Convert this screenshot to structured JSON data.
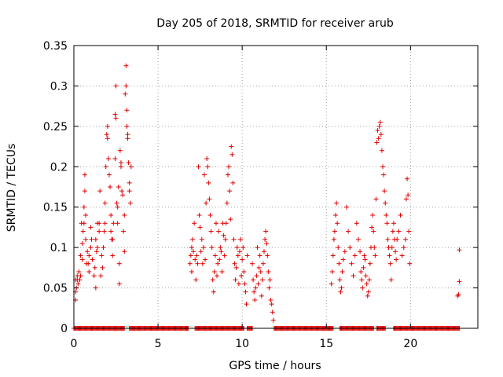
{
  "chart_data": {
    "type": "scatter",
    "title": "Day 205 of 2018, SRMTID for receiver arub",
    "xlabel": "GPS time / hours",
    "ylabel": "SRMTID / TECUs",
    "xlim": [
      0,
      24
    ],
    "ylim": [
      0,
      0.35
    ],
    "x_ticks": [
      0,
      5,
      10,
      15,
      20
    ],
    "x_tick_labels": [
      "0",
      "5",
      "10",
      "15",
      "20"
    ],
    "y_ticks": [
      0,
      0.05,
      0.1,
      0.15,
      0.2,
      0.25,
      0.3,
      0.35
    ],
    "y_tick_labels": [
      "0",
      "0.05",
      "0.1",
      "0.15",
      "0.2",
      "0.25",
      "0.3",
      "0.35"
    ],
    "grid": true,
    "marker": "+",
    "color": "#e00000",
    "series": [
      {
        "name": "SRMTID",
        "points": [
          [
            0.1,
            0.045
          ],
          [
            0.1,
            0.035
          ],
          [
            0.1,
            0.06
          ],
          [
            0.15,
            0.05
          ],
          [
            0.2,
            0.065
          ],
          [
            0.2,
            0.06
          ],
          [
            0.25,
            0.055
          ],
          [
            0.3,
            0.07
          ],
          [
            0.35,
            0.06
          ],
          [
            0.4,
            0.065
          ],
          [
            0.4,
            0.09
          ],
          [
            0.45,
            0.13
          ],
          [
            0.5,
            0.105
          ],
          [
            0.5,
            0.085
          ],
          [
            0.55,
            0.12
          ],
          [
            0.6,
            0.13
          ],
          [
            0.6,
            0.15
          ],
          [
            0.65,
            0.19
          ],
          [
            0.65,
            0.17
          ],
          [
            0.7,
            0.11
          ],
          [
            0.7,
            0.14
          ],
          [
            0.75,
            0.08
          ],
          [
            0.8,
            0.095
          ],
          [
            0.85,
            0.08
          ],
          [
            0.9,
            0.09
          ],
          [
            0.9,
            0.07
          ],
          [
            1.0,
            0.1
          ],
          [
            1.0,
            0.125
          ],
          [
            1.05,
            0.11
          ],
          [
            1.1,
            0.085
          ],
          [
            1.2,
            0.065
          ],
          [
            1.25,
            0.075
          ],
          [
            1.3,
            0.05
          ],
          [
            1.3,
            0.11
          ],
          [
            1.35,
            0.095
          ],
          [
            1.4,
            0.1
          ],
          [
            1.4,
            0.13
          ],
          [
            1.5,
            0.13
          ],
          [
            1.5,
            0.12
          ],
          [
            1.55,
            0.17
          ],
          [
            1.6,
            0.065
          ],
          [
            1.65,
            0.09
          ],
          [
            1.7,
            0.075
          ],
          [
            1.75,
            0.1
          ],
          [
            1.8,
            0.12
          ],
          [
            1.85,
            0.13
          ],
          [
            1.85,
            0.155
          ],
          [
            1.9,
            0.2
          ],
          [
            1.95,
            0.24
          ],
          [
            2.0,
            0.25
          ],
          [
            2.0,
            0.235
          ],
          [
            2.05,
            0.21
          ],
          [
            2.1,
            0.19
          ],
          [
            2.15,
            0.175
          ],
          [
            2.2,
            0.14
          ],
          [
            2.2,
            0.12
          ],
          [
            2.25,
            0.11
          ],
          [
            2.3,
            0.11
          ],
          [
            2.3,
            0.09
          ],
          [
            2.35,
            0.13
          ],
          [
            2.45,
            0.21
          ],
          [
            2.45,
            0.265
          ],
          [
            2.5,
            0.3
          ],
          [
            2.5,
            0.26
          ],
          [
            2.55,
            0.155
          ],
          [
            2.6,
            0.15
          ],
          [
            2.6,
            0.13
          ],
          [
            2.65,
            0.175
          ],
          [
            2.7,
            0.055
          ],
          [
            2.7,
            0.08
          ],
          [
            2.75,
            0.22
          ],
          [
            2.8,
            0.205
          ],
          [
            2.8,
            0.2
          ],
          [
            2.85,
            0.17
          ],
          [
            2.9,
            0.165
          ],
          [
            2.95,
            0.12
          ],
          [
            3.0,
            0.14
          ],
          [
            3.0,
            0.095
          ],
          [
            3.05,
            0.29
          ],
          [
            3.1,
            0.325
          ],
          [
            3.1,
            0.3
          ],
          [
            3.15,
            0.27
          ],
          [
            3.15,
            0.25
          ],
          [
            3.2,
            0.24
          ],
          [
            3.2,
            0.235
          ],
          [
            3.25,
            0.205
          ],
          [
            3.3,
            0.18
          ],
          [
            3.3,
            0.17
          ],
          [
            3.35,
            0.155
          ],
          [
            3.4,
            0.2
          ],
          [
            6.9,
            0.08
          ],
          [
            6.95,
            0.09
          ],
          [
            7.0,
            0.1
          ],
          [
            7.0,
            0.07
          ],
          [
            7.05,
            0.11
          ],
          [
            7.1,
            0.095
          ],
          [
            7.15,
            0.13
          ],
          [
            7.2,
            0.085
          ],
          [
            7.25,
            0.06
          ],
          [
            7.3,
            0.09
          ],
          [
            7.35,
            0.08
          ],
          [
            7.4,
            0.2
          ],
          [
            7.45,
            0.14
          ],
          [
            7.5,
            0.125
          ],
          [
            7.55,
            0.095
          ],
          [
            7.6,
            0.11
          ],
          [
            7.65,
            0.08
          ],
          [
            7.7,
            0.1
          ],
          [
            7.75,
            0.19
          ],
          [
            7.8,
            0.085
          ],
          [
            7.85,
            0.155
          ],
          [
            7.9,
            0.21
          ],
          [
            7.95,
            0.2
          ],
          [
            8.0,
            0.18
          ],
          [
            8.05,
            0.16
          ],
          [
            8.1,
            0.14
          ],
          [
            8.15,
            0.12
          ],
          [
            8.2,
            0.1
          ],
          [
            8.25,
            0.06
          ],
          [
            8.3,
            0.045
          ],
          [
            8.35,
            0.07
          ],
          [
            8.4,
            0.09
          ],
          [
            8.45,
            0.13
          ],
          [
            8.5,
            0.065
          ],
          [
            8.55,
            0.08
          ],
          [
            8.6,
            0.12
          ],
          [
            8.65,
            0.085
          ],
          [
            8.7,
            0.1
          ],
          [
            8.75,
            0.095
          ],
          [
            8.8,
            0.07
          ],
          [
            8.85,
            0.13
          ],
          [
            8.9,
            0.115
          ],
          [
            8.95,
            0.09
          ],
          [
            9.0,
            0.11
          ],
          [
            9.05,
            0.13
          ],
          [
            9.1,
            0.155
          ],
          [
            9.15,
            0.19
          ],
          [
            9.2,
            0.2
          ],
          [
            9.25,
            0.17
          ],
          [
            9.3,
            0.135
          ],
          [
            9.35,
            0.225
          ],
          [
            9.4,
            0.215
          ],
          [
            9.45,
            0.18
          ],
          [
            9.5,
            0.11
          ],
          [
            9.55,
            0.08
          ],
          [
            9.6,
            0.06
          ],
          [
            9.65,
            0.075
          ],
          [
            9.7,
            0.1
          ],
          [
            9.75,
            0.09
          ],
          [
            9.8,
            0.055
          ],
          [
            9.85,
            0.095
          ],
          [
            9.9,
            0.11
          ],
          [
            9.95,
            0.065
          ],
          [
            10.0,
            0.085
          ],
          [
            10.05,
            0.1
          ],
          [
            10.1,
            0.07
          ],
          [
            10.15,
            0.055
          ],
          [
            10.2,
            0.045
          ],
          [
            10.25,
            0.03
          ],
          [
            10.3,
            0.09
          ],
          [
            10.6,
            0.08
          ],
          [
            10.65,
            0.06
          ],
          [
            10.7,
            0.045
          ],
          [
            10.75,
            0.035
          ],
          [
            10.8,
            0.05
          ],
          [
            10.85,
            0.065
          ],
          [
            10.9,
            0.1
          ],
          [
            10.95,
            0.055
          ],
          [
            11.0,
            0.075
          ],
          [
            11.05,
            0.09
          ],
          [
            11.1,
            0.07
          ],
          [
            11.15,
            0.04
          ],
          [
            11.2,
            0.06
          ],
          [
            11.25,
            0.08
          ],
          [
            11.3,
            0.095
          ],
          [
            11.35,
            0.11
          ],
          [
            11.4,
            0.12
          ],
          [
            11.45,
            0.105
          ],
          [
            11.5,
            0.09
          ],
          [
            11.55,
            0.07
          ],
          [
            11.6,
            0.05
          ],
          [
            11.65,
            0.06
          ],
          [
            11.7,
            0.035
          ],
          [
            11.75,
            0.03
          ],
          [
            11.8,
            0.02
          ],
          [
            11.85,
            0.01
          ],
          [
            15.3,
            0.055
          ],
          [
            15.35,
            0.07
          ],
          [
            15.4,
            0.09
          ],
          [
            15.45,
            0.11
          ],
          [
            15.5,
            0.12
          ],
          [
            15.55,
            0.14
          ],
          [
            15.6,
            0.155
          ],
          [
            15.65,
            0.13
          ],
          [
            15.7,
            0.1
          ],
          [
            15.75,
            0.08
          ],
          [
            15.8,
            0.06
          ],
          [
            15.85,
            0.045
          ],
          [
            15.9,
            0.05
          ],
          [
            15.95,
            0.07
          ],
          [
            16.0,
            0.085
          ],
          [
            16.1,
            0.095
          ],
          [
            16.2,
            0.15
          ],
          [
            16.3,
            0.12
          ],
          [
            16.4,
            0.1
          ],
          [
            16.5,
            0.08
          ],
          [
            16.6,
            0.065
          ],
          [
            16.7,
            0.09
          ],
          [
            16.8,
            0.13
          ],
          [
            16.9,
            0.11
          ],
          [
            17.0,
            0.095
          ],
          [
            17.05,
            0.07
          ],
          [
            17.1,
            0.06
          ],
          [
            17.15,
            0.05
          ],
          [
            17.2,
            0.075
          ],
          [
            17.25,
            0.09
          ],
          [
            17.3,
            0.085
          ],
          [
            17.35,
            0.065
          ],
          [
            17.4,
            0.055
          ],
          [
            17.45,
            0.04
          ],
          [
            17.5,
            0.045
          ],
          [
            17.55,
            0.06
          ],
          [
            17.6,
            0.08
          ],
          [
            17.65,
            0.1
          ],
          [
            17.7,
            0.125
          ],
          [
            17.75,
            0.14
          ],
          [
            17.8,
            0.12
          ],
          [
            17.85,
            0.1
          ],
          [
            17.9,
            0.09
          ],
          [
            17.95,
            0.16
          ],
          [
            18.0,
            0.23
          ],
          [
            18.05,
            0.245
          ],
          [
            18.1,
            0.235
          ],
          [
            18.15,
            0.25
          ],
          [
            18.2,
            0.255
          ],
          [
            18.25,
            0.24
          ],
          [
            18.3,
            0.22
          ],
          [
            18.35,
            0.2
          ],
          [
            18.4,
            0.19
          ],
          [
            18.45,
            0.17
          ],
          [
            18.5,
            0.155
          ],
          [
            18.55,
            0.14
          ],
          [
            18.6,
            0.13
          ],
          [
            18.65,
            0.11
          ],
          [
            18.7,
            0.1
          ],
          [
            18.75,
            0.09
          ],
          [
            18.8,
            0.08
          ],
          [
            18.85,
            0.06
          ],
          [
            18.9,
            0.1
          ],
          [
            18.95,
            0.12
          ],
          [
            19.0,
            0.13
          ],
          [
            19.05,
            0.11
          ],
          [
            19.1,
            0.095
          ],
          [
            19.15,
            0.085
          ],
          [
            19.2,
            0.11
          ],
          [
            19.3,
            0.12
          ],
          [
            19.4,
            0.14
          ],
          [
            19.5,
            0.09
          ],
          [
            19.6,
            0.1
          ],
          [
            19.7,
            0.11
          ],
          [
            19.75,
            0.16
          ],
          [
            19.8,
            0.185
          ],
          [
            19.85,
            0.165
          ],
          [
            19.9,
            0.12
          ],
          [
            19.95,
            0.08
          ],
          [
            22.8,
            0.04
          ],
          [
            22.85,
            0.042
          ],
          [
            22.9,
            0.058
          ],
          [
            22.9,
            0.097
          ]
        ]
      }
    ],
    "zero_segments": [
      [
        0.0,
        3.0
      ],
      [
        3.3,
        6.8
      ],
      [
        7.2,
        10.1
      ],
      [
        10.3,
        10.6
      ],
      [
        11.9,
        15.4
      ],
      [
        15.8,
        17.8
      ],
      [
        18.0,
        18.5
      ],
      [
        19.0,
        22.9
      ]
    ]
  }
}
